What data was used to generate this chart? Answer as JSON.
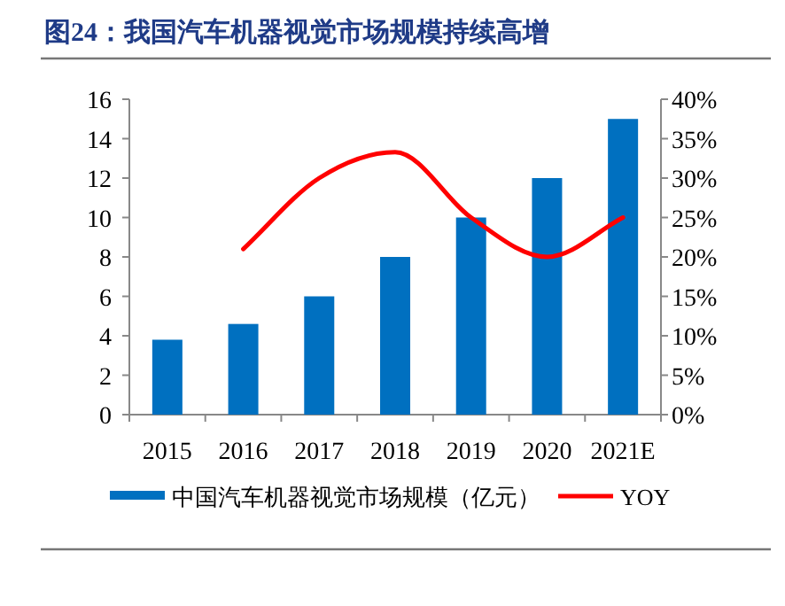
{
  "chart_data": {
    "type": "bar",
    "title": "图24：我国汽车机器视觉市场规模持续高增",
    "categories": [
      "2015",
      "2016",
      "2017",
      "2018",
      "2019",
      "2020",
      "2021E"
    ],
    "series": [
      {
        "name": "中国汽车机器视觉市场规模（亿元）",
        "color": "#0070c0",
        "values": [
          3.8,
          4.6,
          6,
          8,
          10,
          12,
          15
        ]
      },
      {
        "name": "YOY",
        "type": "line",
        "axis": "y2",
        "color": "#ff0000",
        "values": [
          null,
          21,
          30,
          33.3,
          25,
          20,
          25
        ]
      }
    ],
    "ylim": [
      0,
      16
    ],
    "yticks": [
      0,
      2,
      4,
      6,
      8,
      10,
      12,
      14,
      16
    ],
    "y2lim": [
      0,
      40
    ],
    "y2ticks": [
      {
        "value": 0,
        "label": "0%"
      },
      {
        "value": 5,
        "label": "5%"
      },
      {
        "value": 10,
        "label": "10%"
      },
      {
        "value": 15,
        "label": "15%"
      },
      {
        "value": 20,
        "label": "20%"
      },
      {
        "value": 25,
        "label": "25%"
      },
      {
        "value": 30,
        "label": "30%"
      },
      {
        "value": 35,
        "label": "35%"
      },
      {
        "value": 40,
        "label": "40%"
      }
    ],
    "legend": "bottom",
    "grid": false
  }
}
